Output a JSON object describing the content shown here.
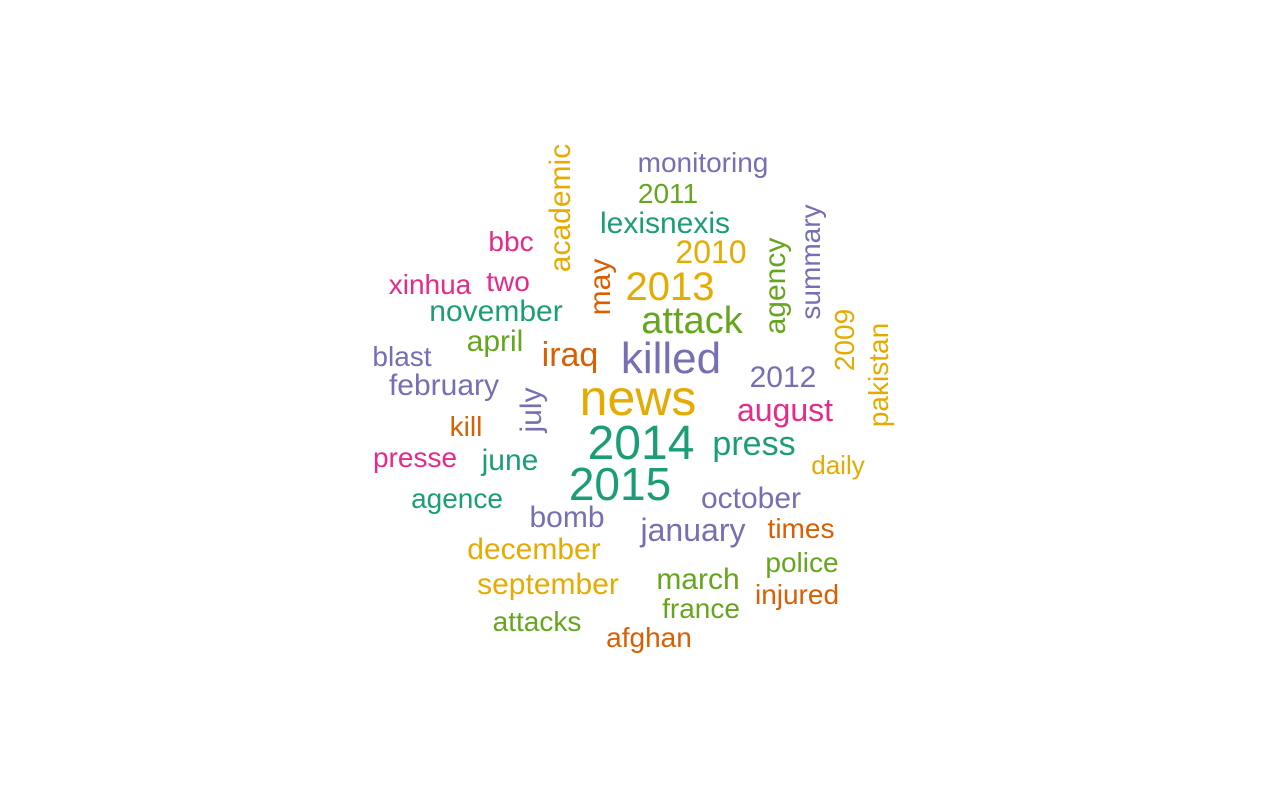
{
  "palette": {
    "teal": "#1b9e77",
    "orange": "#d95f02",
    "purple": "#7570b3",
    "magenta": "#e7298a",
    "green": "#66a61e",
    "gold": "#e6ab02"
  },
  "words": [
    {
      "text": "news",
      "color": "gold",
      "vertical": false
    },
    {
      "text": "2014",
      "color": "teal",
      "vertical": false
    },
    {
      "text": "killed",
      "color": "purple",
      "vertical": false
    },
    {
      "text": "2015",
      "color": "teal",
      "vertical": false
    },
    {
      "text": "2013",
      "color": "gold",
      "vertical": false
    },
    {
      "text": "attack",
      "color": "green",
      "vertical": false
    },
    {
      "text": "press",
      "color": "teal",
      "vertical": false
    },
    {
      "text": "iraq",
      "color": "orange",
      "vertical": false
    },
    {
      "text": "monitoring",
      "color": "purple",
      "vertical": false
    },
    {
      "text": "2011",
      "color": "green",
      "vertical": false
    },
    {
      "text": "lexisnexis",
      "color": "teal",
      "vertical": false
    },
    {
      "text": "2010",
      "color": "gold",
      "vertical": false
    },
    {
      "text": "bbc",
      "color": "magenta",
      "vertical": false
    },
    {
      "text": "xinhua",
      "color": "magenta",
      "vertical": false
    },
    {
      "text": "two",
      "color": "magenta",
      "vertical": false
    },
    {
      "text": "november",
      "color": "teal",
      "vertical": false
    },
    {
      "text": "april",
      "color": "green",
      "vertical": false
    },
    {
      "text": "blast",
      "color": "purple",
      "vertical": false
    },
    {
      "text": "february",
      "color": "purple",
      "vertical": false
    },
    {
      "text": "2012",
      "color": "purple",
      "vertical": false
    },
    {
      "text": "august",
      "color": "magenta",
      "vertical": false
    },
    {
      "text": "kill",
      "color": "orange",
      "vertical": false
    },
    {
      "text": "presse",
      "color": "magenta",
      "vertical": false
    },
    {
      "text": "june",
      "color": "teal",
      "vertical": false
    },
    {
      "text": "daily",
      "color": "gold",
      "vertical": false
    },
    {
      "text": "agence",
      "color": "teal",
      "vertical": false
    },
    {
      "text": "october",
      "color": "purple",
      "vertical": false
    },
    {
      "text": "bomb",
      "color": "purple",
      "vertical": false
    },
    {
      "text": "january",
      "color": "purple",
      "vertical": false
    },
    {
      "text": "times",
      "color": "orange",
      "vertical": false
    },
    {
      "text": "december",
      "color": "gold",
      "vertical": false
    },
    {
      "text": "police",
      "color": "green",
      "vertical": false
    },
    {
      "text": "march",
      "color": "green",
      "vertical": false
    },
    {
      "text": "september",
      "color": "gold",
      "vertical": false
    },
    {
      "text": "injured",
      "color": "orange",
      "vertical": false
    },
    {
      "text": "france",
      "color": "green",
      "vertical": false
    },
    {
      "text": "attacks",
      "color": "green",
      "vertical": false
    },
    {
      "text": "afghan",
      "color": "orange",
      "vertical": false
    },
    {
      "text": "academic",
      "color": "gold",
      "vertical": true
    },
    {
      "text": "may",
      "color": "orange",
      "vertical": true
    },
    {
      "text": "agency",
      "color": "green",
      "vertical": true
    },
    {
      "text": "summary",
      "color": "purple",
      "vertical": true
    },
    {
      "text": "2009",
      "color": "gold",
      "vertical": true
    },
    {
      "text": "pakistan",
      "color": "gold",
      "vertical": true
    },
    {
      "text": "july",
      "color": "purple",
      "vertical": true
    }
  ]
}
